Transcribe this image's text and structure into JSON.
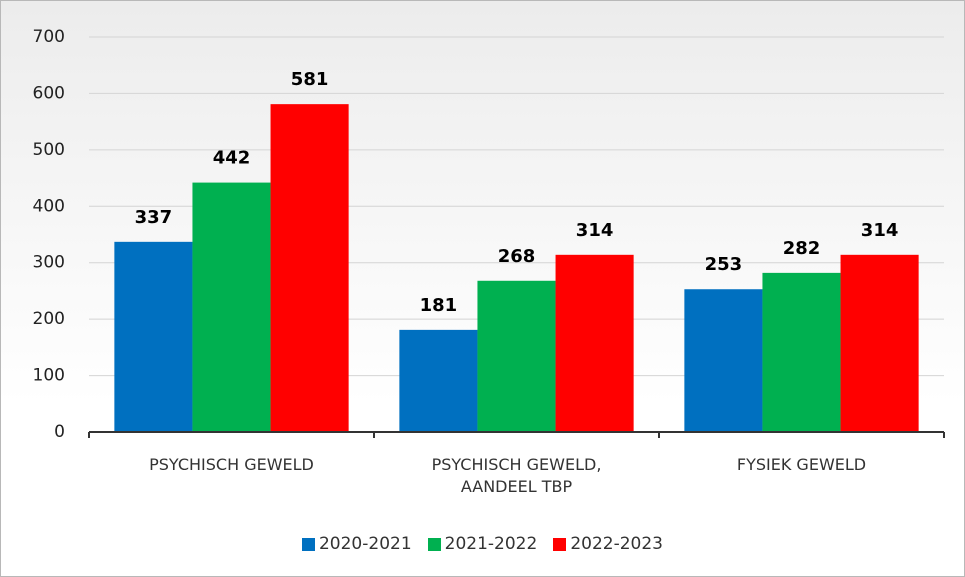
{
  "chart_data": {
    "type": "bar",
    "categories": [
      "PSYCHISCH GEWELD",
      "PSYCHISCH GEWELD, AANDEEL TBP",
      "FYSIEK GEWELD"
    ],
    "series": [
      {
        "name": "2020-2021",
        "color": "#0070c0",
        "values": [
          337,
          181,
          253
        ]
      },
      {
        "name": "2021-2022",
        "color": "#00b050",
        "values": [
          442,
          268,
          282
        ]
      },
      {
        "name": "2022-2023",
        "color": "#ff0000",
        "values": [
          581,
          314,
          314
        ]
      }
    ],
    "ylim": [
      0,
      700
    ],
    "yticks": [
      0,
      100,
      200,
      300,
      400,
      500,
      600,
      700
    ],
    "grid": true,
    "legend": "bottom"
  }
}
